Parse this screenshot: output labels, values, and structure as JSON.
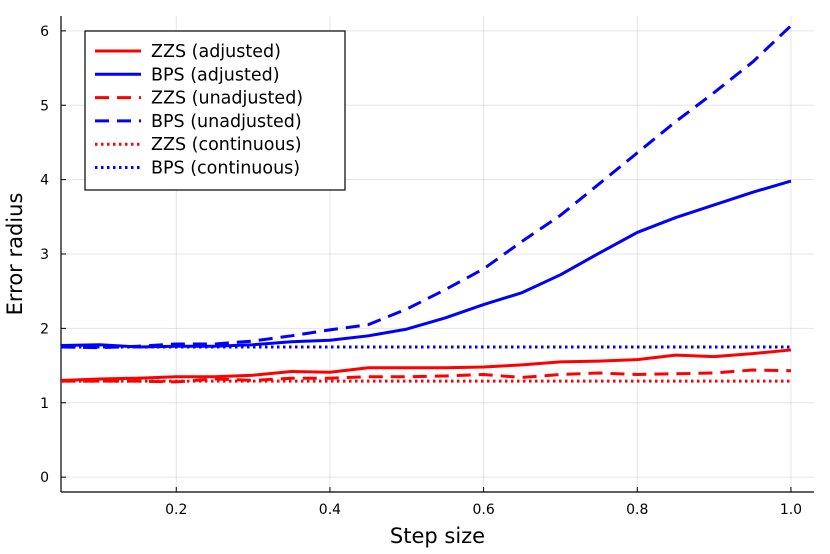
{
  "chart_data": {
    "type": "line",
    "title": "",
    "xlabel": "Step size",
    "ylabel": "Error radius",
    "xlim": [
      0.05,
      1.03
    ],
    "ylim": [
      -0.2,
      6.2
    ],
    "xticks": [
      0.2,
      0.4,
      0.6,
      0.8,
      1.0
    ],
    "xtick_labels": [
      "0.2",
      "0.4",
      "0.6",
      "0.8",
      "1.0"
    ],
    "yticks": [
      0,
      1,
      2,
      3,
      4,
      5,
      6
    ],
    "ytick_labels": [
      "0",
      "1",
      "2",
      "3",
      "4",
      "5",
      "6"
    ],
    "grid": true,
    "legend_position": "top-left",
    "x": [
      0.05,
      0.1,
      0.15,
      0.2,
      0.25,
      0.3,
      0.35,
      0.4,
      0.45,
      0.5,
      0.55,
      0.6,
      0.65,
      0.7,
      0.75,
      0.8,
      0.85,
      0.9,
      0.95,
      1.0
    ],
    "series": [
      {
        "name": "ZZS (adjusted)",
        "color": "#ff0000",
        "style": "solid",
        "values": [
          1.3,
          1.32,
          1.33,
          1.35,
          1.35,
          1.37,
          1.42,
          1.41,
          1.47,
          1.47,
          1.47,
          1.48,
          1.51,
          1.55,
          1.56,
          1.58,
          1.64,
          1.62,
          1.66,
          1.71
        ]
      },
      {
        "name": "BPS (adjusted)",
        "color": "#0000ff",
        "style": "solid",
        "values": [
          1.77,
          1.78,
          1.75,
          1.76,
          1.76,
          1.78,
          1.82,
          1.84,
          1.9,
          1.99,
          2.14,
          2.32,
          2.48,
          2.72,
          3.01,
          3.29,
          3.49,
          3.66,
          3.83,
          3.98
        ]
      },
      {
        "name": "ZZS (unadjusted)",
        "color": "#ff0000",
        "style": "dashed",
        "values": [
          1.29,
          1.29,
          1.29,
          1.28,
          1.32,
          1.3,
          1.33,
          1.33,
          1.35,
          1.35,
          1.36,
          1.38,
          1.34,
          1.38,
          1.4,
          1.38,
          1.39,
          1.4,
          1.44,
          1.43
        ]
      },
      {
        "name": "BPS (unadjusted)",
        "color": "#0000ff",
        "style": "dashed",
        "values": [
          1.75,
          1.74,
          1.76,
          1.79,
          1.79,
          1.83,
          1.9,
          1.98,
          2.05,
          2.26,
          2.52,
          2.8,
          3.17,
          3.52,
          3.94,
          4.36,
          4.78,
          5.17,
          5.58,
          6.07
        ]
      },
      {
        "name": "ZZS (continuous)",
        "color": "#ff0000",
        "style": "dotted",
        "values": [
          1.29,
          1.29,
          1.29,
          1.29,
          1.29,
          1.29,
          1.29,
          1.29,
          1.29,
          1.29,
          1.29,
          1.29,
          1.29,
          1.29,
          1.29,
          1.29,
          1.29,
          1.29,
          1.29,
          1.29
        ]
      },
      {
        "name": "BPS (continuous)",
        "color": "#0000ff",
        "style": "dotted",
        "values": [
          1.75,
          1.75,
          1.75,
          1.75,
          1.75,
          1.75,
          1.75,
          1.75,
          1.75,
          1.75,
          1.75,
          1.75,
          1.75,
          1.75,
          1.75,
          1.75,
          1.75,
          1.75,
          1.75,
          1.75
        ]
      }
    ]
  }
}
